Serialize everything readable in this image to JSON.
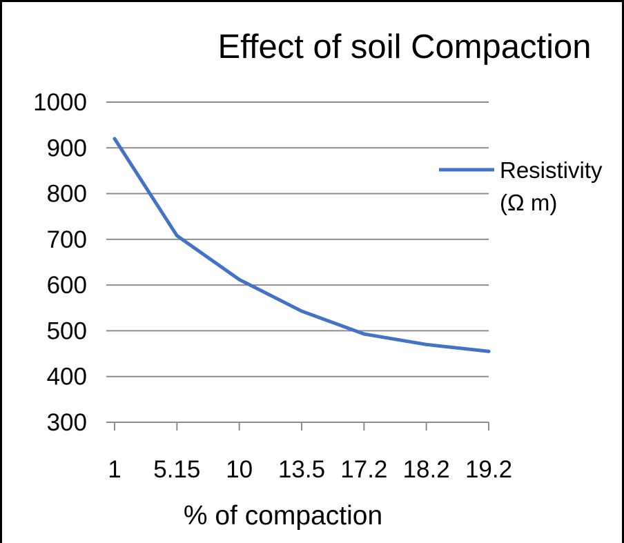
{
  "chart_data": {
    "type": "line",
    "title": "Effect of soil Compaction",
    "xlabel": "% of compaction",
    "ylabel": "",
    "categories": [
      "1",
      "5.15",
      "10",
      "13.5",
      "17.2",
      "18.2",
      "19.2"
    ],
    "series": [
      {
        "name": "Resistivity (Ω m)",
        "name_lines": [
          "Resistivity",
          "(Ω m)"
        ],
        "values": [
          920,
          708,
          612,
          543,
          493,
          470,
          455
        ],
        "color": "#4472C4"
      }
    ],
    "ylim": [
      300,
      1000
    ],
    "yticks": [
      300,
      400,
      500,
      600,
      700,
      800,
      900,
      1000
    ],
    "grid": true,
    "legend": "right"
  }
}
